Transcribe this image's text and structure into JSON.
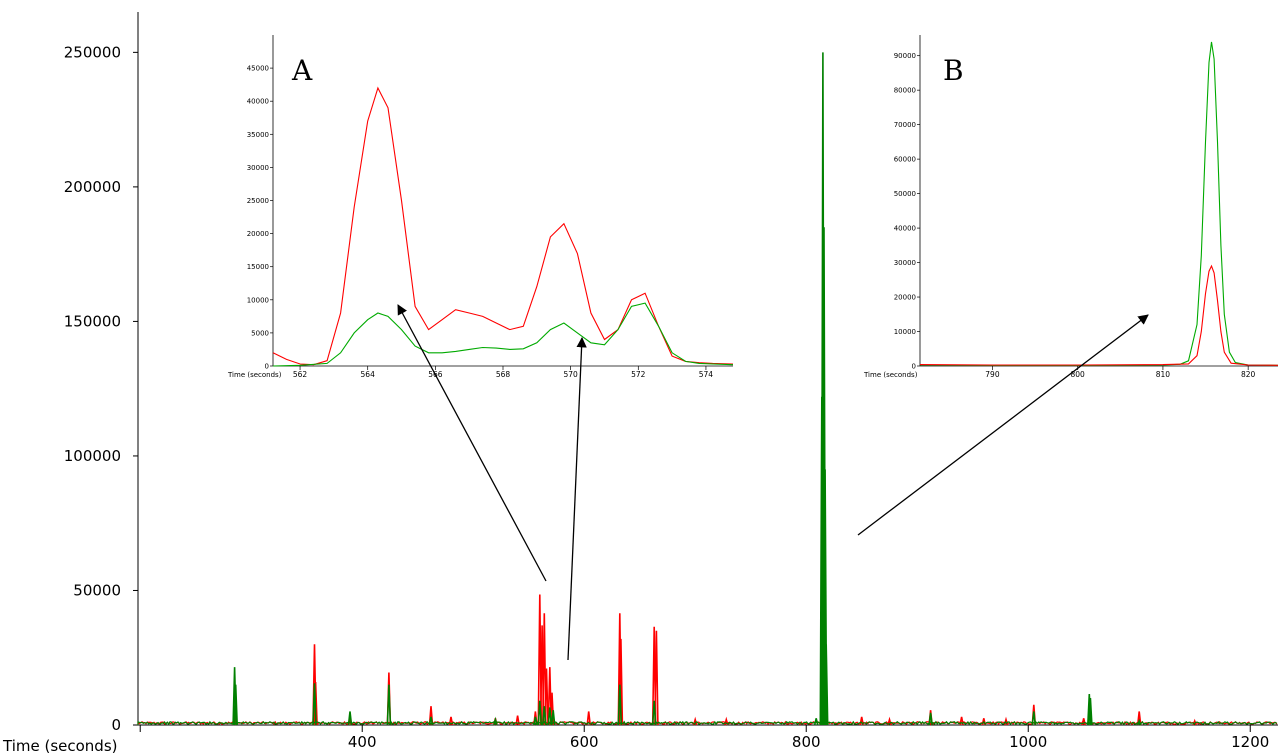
{
  "chart_data": [
    {
      "type": "line",
      "xlabel": "Time (seconds)",
      "ylabel": "",
      "xlim": [
        198,
        1225
      ],
      "ylim": [
        0,
        265000
      ],
      "x_ticks": [
        400,
        600,
        800,
        1000,
        1200
      ],
      "y_ticks": [
        0,
        50000,
        100000,
        150000,
        200000,
        250000
      ],
      "grid": false,
      "series": [
        {
          "color": "#ff0000",
          "peaks": [
            {
              "x": 285,
              "y": 7000
            },
            {
              "x": 357,
              "y": 30000
            },
            {
              "x": 358,
              "y": 16000
            },
            {
              "x": 389,
              "y": 3000
            },
            {
              "x": 424,
              "y": 19500
            },
            {
              "x": 462,
              "y": 7000
            },
            {
              "x": 480,
              "y": 3000
            },
            {
              "x": 520,
              "y": 2500
            },
            {
              "x": 540,
              "y": 3500
            },
            {
              "x": 556,
              "y": 5000
            },
            {
              "x": 560,
              "y": 48500
            },
            {
              "x": 562,
              "y": 37000
            },
            {
              "x": 564,
              "y": 41500
            },
            {
              "x": 566,
              "y": 21000
            },
            {
              "x": 569,
              "y": 21500
            },
            {
              "x": 571,
              "y": 12000
            },
            {
              "x": 604,
              "y": 5000
            },
            {
              "x": 632,
              "y": 41500
            },
            {
              "x": 633,
              "y": 32000
            },
            {
              "x": 663,
              "y": 36500
            },
            {
              "x": 665,
              "y": 35000
            },
            {
              "x": 700,
              "y": 2000
            },
            {
              "x": 728,
              "y": 2000
            },
            {
              "x": 815,
              "y": 53000
            },
            {
              "x": 817,
              "y": 14000
            },
            {
              "x": 850,
              "y": 3000
            },
            {
              "x": 875,
              "y": 2000
            },
            {
              "x": 912,
              "y": 5500
            },
            {
              "x": 940,
              "y": 3000
            },
            {
              "x": 960,
              "y": 2500
            },
            {
              "x": 980,
              "y": 2000
            },
            {
              "x": 1005,
              "y": 7500
            },
            {
              "x": 1050,
              "y": 2500
            },
            {
              "x": 1100,
              "y": 5000
            },
            {
              "x": 1150,
              "y": 1500
            }
          ]
        },
        {
          "color": "#008000",
          "peaks": [
            {
              "x": 285,
              "y": 21500
            },
            {
              "x": 286,
              "y": 15000
            },
            {
              "x": 357,
              "y": 15500
            },
            {
              "x": 389,
              "y": 5000
            },
            {
              "x": 424,
              "y": 15000
            },
            {
              "x": 462,
              "y": 3000
            },
            {
              "x": 520,
              "y": 2000
            },
            {
              "x": 556,
              "y": 3000
            },
            {
              "x": 560,
              "y": 9000
            },
            {
              "x": 564,
              "y": 7000
            },
            {
              "x": 569,
              "y": 6500
            },
            {
              "x": 572,
              "y": 5500
            },
            {
              "x": 632,
              "y": 15000
            },
            {
              "x": 663,
              "y": 9000
            },
            {
              "x": 809,
              "y": 2500
            },
            {
              "x": 814,
              "y": 122000
            },
            {
              "x": 815,
              "y": 250000
            },
            {
              "x": 816,
              "y": 185000
            },
            {
              "x": 817,
              "y": 95000
            },
            {
              "x": 818,
              "y": 30000
            },
            {
              "x": 912,
              "y": 4500
            },
            {
              "x": 1005,
              "y": 5000
            },
            {
              "x": 1055,
              "y": 11500
            },
            {
              "x": 1056,
              "y": 10000
            },
            {
              "x": 1100,
              "y": 1500
            }
          ]
        }
      ]
    },
    {
      "type": "line",
      "label": "A",
      "xlabel": "Time (seconds)",
      "xlim": [
        561.2,
        574.8
      ],
      "ylim": [
        0,
        50000
      ],
      "x_ticks": [
        562,
        564,
        566,
        568,
        570,
        572,
        574
      ],
      "y_ticks": [
        0,
        5000,
        10000,
        15000,
        20000,
        25000,
        30000,
        35000,
        40000,
        45000
      ],
      "grid": false,
      "series": [
        {
          "color": "#ff0000",
          "x": [
            561.2,
            561.6,
            562.0,
            562.4,
            562.8,
            563.2,
            563.6,
            564.0,
            564.3,
            564.6,
            565.0,
            565.4,
            565.8,
            566.2,
            566.6,
            567.0,
            567.4,
            567.8,
            568.2,
            568.6,
            569.0,
            569.4,
            569.8,
            570.2,
            570.6,
            571.0,
            571.4,
            571.8,
            572.2,
            572.6,
            573.0,
            573.4,
            573.8,
            574.2,
            574.8
          ],
          "y": [
            2000,
            1000,
            300,
            200,
            800,
            8000,
            24000,
            37000,
            42000,
            39000,
            25000,
            9000,
            5500,
            7000,
            8500,
            8000,
            7500,
            6500,
            5500,
            6000,
            12000,
            19500,
            21500,
            17000,
            8000,
            4000,
            5500,
            10000,
            11000,
            6000,
            1500,
            700,
            500,
            400,
            300
          ]
        },
        {
          "color": "#00aa00",
          "x": [
            561.2,
            562.0,
            562.8,
            563.2,
            563.6,
            564.0,
            564.3,
            564.6,
            565.0,
            565.4,
            565.8,
            566.2,
            566.6,
            567.0,
            567.4,
            567.8,
            568.2,
            568.6,
            569.0,
            569.4,
            569.8,
            570.2,
            570.6,
            571.0,
            571.4,
            571.8,
            572.2,
            572.6,
            573.0,
            573.4,
            573.8,
            574.2,
            574.8
          ],
          "y": [
            0,
            100,
            400,
            2000,
            5000,
            7000,
            8000,
            7500,
            5500,
            3000,
            2000,
            2000,
            2200,
            2500,
            2800,
            2700,
            2500,
            2600,
            3500,
            5500,
            6500,
            5000,
            3500,
            3200,
            5500,
            9000,
            9500,
            6000,
            2000,
            700,
            400,
            300,
            200
          ]
        }
      ]
    },
    {
      "type": "line",
      "label": "B",
      "xlabel": "Time (seconds)",
      "xlim": [
        781.5,
        823.5
      ],
      "ylim": [
        0,
        96000
      ],
      "x_ticks": [
        790,
        800,
        810,
        820
      ],
      "y_ticks": [
        0,
        10000,
        20000,
        30000,
        40000,
        50000,
        60000,
        70000,
        80000,
        90000
      ],
      "grid": false,
      "series": [
        {
          "color": "#00aa00",
          "x": [
            781.5,
            790,
            800,
            810,
            812,
            813,
            814,
            814.5,
            815,
            815.4,
            815.7,
            816,
            816.4,
            816.8,
            817.2,
            817.8,
            818.5,
            820,
            823.5
          ],
          "y": [
            300,
            200,
            200,
            300,
            500,
            1500,
            12000,
            32000,
            65000,
            88000,
            94000,
            89000,
            65000,
            35000,
            15000,
            4000,
            1000,
            300,
            200
          ]
        },
        {
          "color": "#ff0000",
          "x": [
            781.5,
            790,
            800,
            810,
            813,
            814,
            814.5,
            815,
            815.4,
            815.7,
            816,
            816.4,
            816.8,
            817.2,
            818,
            820,
            823.5
          ],
          "y": [
            400,
            300,
            300,
            400,
            600,
            3000,
            10000,
            21000,
            27500,
            29000,
            27000,
            19000,
            10000,
            4000,
            800,
            300,
            200
          ]
        }
      ]
    }
  ]
}
